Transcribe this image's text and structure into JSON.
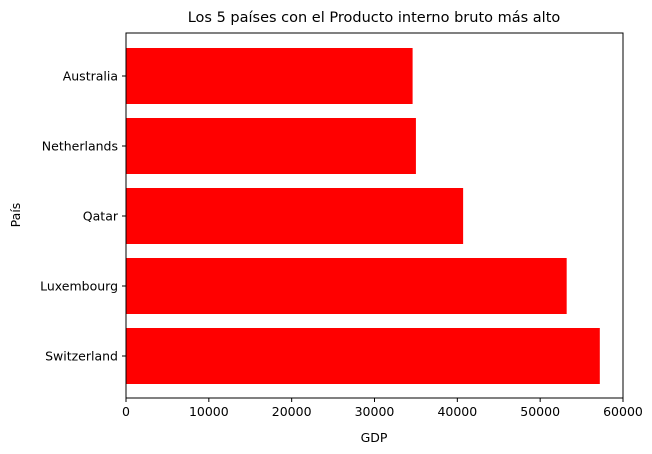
{
  "chart_data": {
    "type": "bar",
    "orientation": "horizontal",
    "title": "Los 5 países con el Producto interno bruto más alto",
    "xlabel": "GDP",
    "ylabel": "País",
    "categories": [
      "Switzerland",
      "Luxembourg",
      "Qatar",
      "Netherlands",
      "Australia"
    ],
    "values": [
      57200,
      53200,
      40700,
      35000,
      34600
    ],
    "xlim": [
      0,
      60000
    ],
    "xticks": [
      0,
      10000,
      20000,
      30000,
      40000,
      50000,
      60000
    ],
    "xtick_labels": [
      "0",
      "10000",
      "20000",
      "30000",
      "40000",
      "50000",
      "60000"
    ],
    "bar_color": "#ff0000",
    "grid": false
  }
}
